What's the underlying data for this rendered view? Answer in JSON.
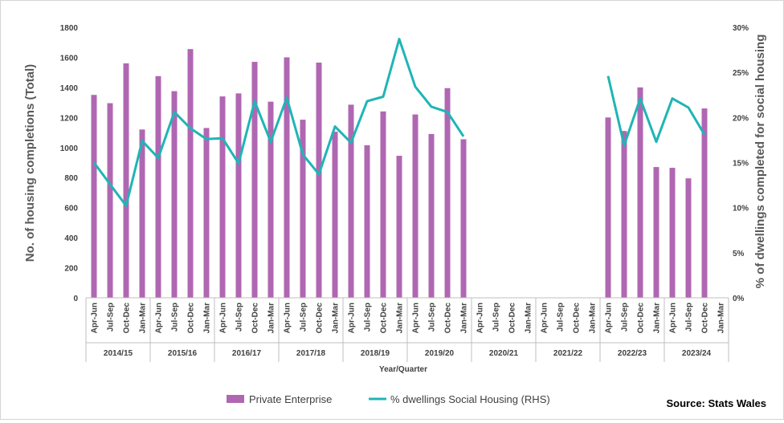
{
  "chart_data": {
    "type": "bar",
    "xlabel": "Year/Quarter",
    "ylabel": "No. of housing completions (Total)",
    "y2label": "% of dwellings completed for social housing",
    "ylim": [
      0,
      1800
    ],
    "y2lim": [
      0,
      30
    ],
    "yticks": [
      "0",
      "200",
      "400",
      "600",
      "800",
      "1000",
      "1200",
      "1400",
      "1600",
      "1800"
    ],
    "y2ticks": [
      "0%",
      "5%",
      "10%",
      "15%",
      "20%",
      "25%",
      "30%"
    ],
    "quarters": [
      "Apr-Jun",
      "Jul-Sep",
      "Oct-Dec",
      "Jan-Mar"
    ],
    "years": [
      "2014/15",
      "2015/16",
      "2016/17",
      "2017/18",
      "2018/19",
      "2019/20",
      "2020/21",
      "2021/22",
      "2022/23",
      "2023/24"
    ],
    "series": [
      {
        "name": "Private Enterprise",
        "type": "bar",
        "color": "#b067b2",
        "values": [
          1350,
          1295,
          1560,
          1120,
          1475,
          1375,
          1655,
          1130,
          1340,
          1360,
          1570,
          1305,
          1600,
          1185,
          1565,
          1105,
          1285,
          1015,
          1240,
          945,
          1220,
          1090,
          1395,
          1055,
          null,
          null,
          null,
          null,
          null,
          null,
          null,
          null,
          1200,
          1110,
          1400,
          870,
          865,
          795,
          1260
        ]
      },
      {
        "name": "% dwellings Social Housing (RHS)",
        "type": "line",
        "axis": "right",
        "color": "#1fb5b5",
        "values": [
          15.0,
          12.6,
          10.2,
          17.4,
          15.5,
          20.6,
          18.8,
          17.6,
          17.7,
          14.9,
          21.8,
          17.3,
          22.2,
          15.9,
          13.7,
          19.0,
          17.2,
          21.8,
          22.3,
          28.7,
          23.4,
          21.2,
          20.6,
          17.9,
          null,
          null,
          null,
          null,
          null,
          null,
          null,
          null,
          24.6,
          16.9,
          22.1,
          17.3,
          22.1,
          21.1,
          18.1
        ]
      }
    ],
    "source": "Source: Stats Wales"
  }
}
